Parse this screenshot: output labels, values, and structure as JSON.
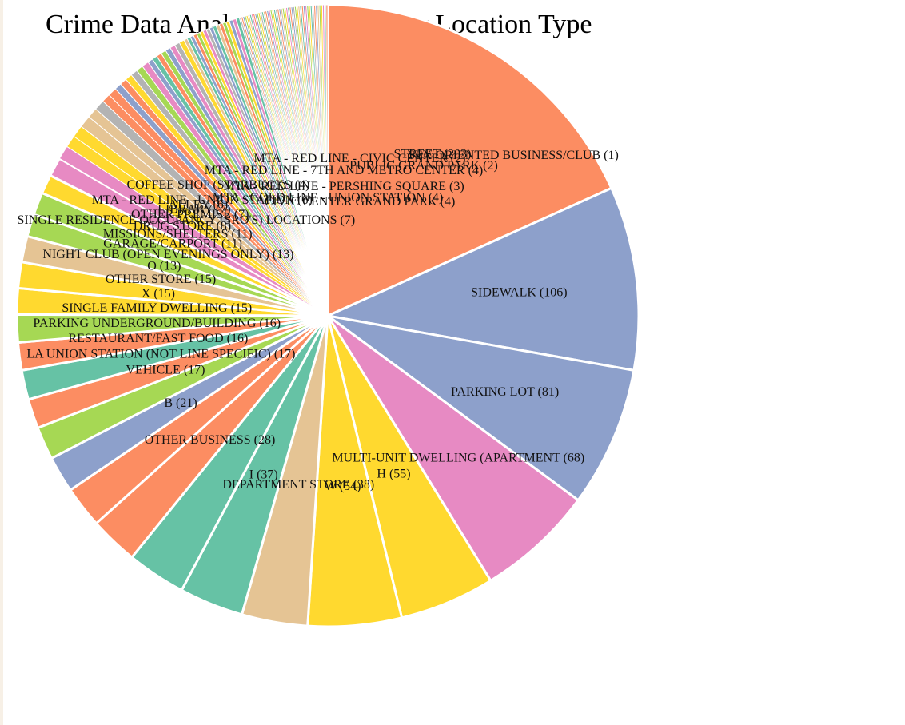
{
  "chart_data": {
    "type": "pie",
    "title": "Crime Data Analysis - Incidents by Location Type",
    "slices": [
      {
        "label": "STREET",
        "value": 203,
        "color": "#fc8d62"
      },
      {
        "label": "SIDEWALK",
        "value": 106,
        "color": "#8da0cb"
      },
      {
        "label": "PARKING LOT",
        "value": 81,
        "color": "#8da0cb"
      },
      {
        "label": "MULTI-UNIT DWELLING (APARTMENT",
        "value": 68,
        "color": "#e78ac3"
      },
      {
        "label": "H",
        "value": 55,
        "color": "#ffd92f"
      },
      {
        "label": "W",
        "value": 54,
        "color": "#ffd92f"
      },
      {
        "label": "DEPARTMENT STORE",
        "value": 38,
        "color": "#e5c494"
      },
      {
        "label": "I",
        "value": 37,
        "color": "#66c2a5"
      },
      {
        "label": "",
        "value": 34,
        "color": "#66c2a5"
      },
      {
        "label": "OTHER BUSINESS",
        "value": 28,
        "color": "#fc8d62"
      },
      {
        "label": "",
        "value": 24,
        "color": "#fc8d62"
      },
      {
        "label": "B",
        "value": 21,
        "color": "#8da0cb"
      },
      {
        "label": "",
        "value": 19,
        "color": "#a6d854"
      },
      {
        "label": "VEHICLE",
        "value": 17,
        "color": "#fc8d62"
      },
      {
        "label": "LA UNION STATION (NOT LINE SPECIFIC)",
        "value": 17,
        "color": "#66c2a5"
      },
      {
        "label": "RESTAURANT/FAST FOOD",
        "value": 16,
        "color": "#fc8d62"
      },
      {
        "label": "PARKING UNDERGROUND/BUILDING",
        "value": 16,
        "color": "#a6d854"
      },
      {
        "label": "SINGLE FAMILY DWELLING",
        "value": 15,
        "color": "#ffd92f"
      },
      {
        "label": "X",
        "value": 15,
        "color": "#ffd92f"
      },
      {
        "label": "OTHER STORE",
        "value": 15,
        "color": "#e5c494"
      },
      {
        "label": "O",
        "value": 13,
        "color": "#a6d854"
      },
      {
        "label": "NIGHT CLUB (OPEN EVENINGS ONLY)",
        "value": 13,
        "color": "#a6d854"
      },
      {
        "label": "GARAGE/CARPORT",
        "value": 11,
        "color": "#ffd92f"
      },
      {
        "label": "MISSIONS/SHELTERS",
        "value": 11,
        "color": "#e78ac3"
      },
      {
        "label": "DRUG STORE",
        "value": 8,
        "color": "#e78ac3"
      },
      {
        "label": "SINGLE RESIDENCE OCCUPANCY (SRO'S) LOCATIONS",
        "value": 7,
        "color": "#ffd92f"
      },
      {
        "label": "OTHER PREMISE",
        "value": 7,
        "color": "#ffd92f"
      },
      {
        "label": "LIBRARY",
        "value": 7,
        "color": "#e5c494"
      },
      {
        "label": "ALLEY",
        "value": 6,
        "color": "#e5c494"
      },
      {
        "label": "MTA - RED LINE - UNION STATION",
        "value": 6,
        "color": "#b3b3b3"
      },
      {
        "label": "",
        "value": 5,
        "color": "#fc8d62"
      },
      {
        "label": "",
        "value": 5,
        "color": "#fc8d62"
      },
      {
        "label": "",
        "value": 4,
        "color": "#8da0cb"
      },
      {
        "label": "",
        "value": 4,
        "color": "#fc8d62"
      },
      {
        "label": "COFFEE SHOP (STARBUCKS",
        "value": 4,
        "color": "#ffd92f"
      },
      {
        "label": "",
        "value": 4,
        "color": "#b3b3b3"
      },
      {
        "label": "",
        "value": 4,
        "color": "#a6d854"
      },
      {
        "label": "",
        "value": 4,
        "color": "#e78ac3"
      },
      {
        "label": "",
        "value": 3,
        "color": "#8da0cb"
      },
      {
        "label": "",
        "value": 3,
        "color": "#66c2a5"
      },
      {
        "label": "",
        "value": 3,
        "color": "#fc8d62"
      },
      {
        "label": "",
        "value": 3,
        "color": "#a6d854"
      },
      {
        "label": "",
        "value": 3,
        "color": "#8da0cb"
      },
      {
        "label": "",
        "value": 3,
        "color": "#e78ac3"
      },
      {
        "label": "",
        "value": 3,
        "color": "#b3b3b3"
      },
      {
        "label": "",
        "value": 3,
        "color": "#ffd92f"
      },
      {
        "label": "",
        "value": 2,
        "color": "#e5c494"
      },
      {
        "label": "",
        "value": 2,
        "color": "#66c2a5"
      },
      {
        "label": "",
        "value": 2,
        "color": "#8da0cb"
      },
      {
        "label": "",
        "value": 2,
        "color": "#fc8d62"
      },
      {
        "label": "",
        "value": 2,
        "color": "#a6d854"
      },
      {
        "label": "",
        "value": 2,
        "color": "#ffd92f"
      },
      {
        "label": "",
        "value": 2,
        "color": "#e78ac3"
      },
      {
        "label": "",
        "value": 2,
        "color": "#b3b3b3"
      },
      {
        "label": "",
        "value": 2,
        "color": "#8da0cb"
      },
      {
        "label": "",
        "value": 2,
        "color": "#66c2a5"
      },
      {
        "label": "",
        "value": 2,
        "color": "#e5c494"
      },
      {
        "label": "",
        "value": 2,
        "color": "#fc8d62"
      },
      {
        "label": "",
        "value": 2,
        "color": "#a6d854"
      },
      {
        "label": "",
        "value": 2,
        "color": "#ffd92f"
      },
      {
        "label": "",
        "value": 2,
        "color": "#8da0cb"
      },
      {
        "label": "",
        "value": 2,
        "color": "#e78ac3"
      },
      {
        "label": "",
        "value": 2,
        "color": "#66c2a5"
      },
      {
        "label": "",
        "value": 1,
        "color": "#b3b3b3"
      },
      {
        "label": "",
        "value": 1,
        "color": "#fc8d62"
      },
      {
        "label": "",
        "value": 1,
        "color": "#8da0cb"
      },
      {
        "label": "",
        "value": 1,
        "color": "#a6d854"
      },
      {
        "label": "",
        "value": 1,
        "color": "#ffd92f"
      },
      {
        "label": "",
        "value": 1,
        "color": "#e5c494"
      },
      {
        "label": "",
        "value": 1,
        "color": "#66c2a5"
      },
      {
        "label": "",
        "value": 1,
        "color": "#e78ac3"
      },
      {
        "label": "",
        "value": 1,
        "color": "#fc8d62"
      },
      {
        "label": "",
        "value": 1,
        "color": "#8da0cb"
      },
      {
        "label": "",
        "value": 1,
        "color": "#a6d854"
      },
      {
        "label": "",
        "value": 1,
        "color": "#ffd92f"
      },
      {
        "label": "",
        "value": 1,
        "color": "#b3b3b3"
      },
      {
        "label": "",
        "value": 1,
        "color": "#66c2a5"
      },
      {
        "label": "",
        "value": 1,
        "color": "#e5c494"
      },
      {
        "label": "",
        "value": 1,
        "color": "#fc8d62"
      },
      {
        "label": "",
        "value": 1,
        "color": "#8da0cb"
      },
      {
        "label": "",
        "value": 1,
        "color": "#e78ac3"
      },
      {
        "label": "",
        "value": 1,
        "color": "#a6d854"
      },
      {
        "label": "",
        "value": 1,
        "color": "#ffd92f"
      },
      {
        "label": "",
        "value": 1,
        "color": "#66c2a5"
      },
      {
        "label": "",
        "value": 1,
        "color": "#b3b3b3"
      },
      {
        "label": "",
        "value": 1,
        "color": "#fc8d62"
      },
      {
        "label": "",
        "value": 1,
        "color": "#8da0cb"
      },
      {
        "label": "",
        "value": 1,
        "color": "#e5c494"
      },
      {
        "label": "",
        "value": 1,
        "color": "#a6d854"
      },
      {
        "label": "",
        "value": 1,
        "color": "#ffd92f"
      },
      {
        "label": "",
        "value": 1,
        "color": "#e78ac3"
      },
      {
        "label": "",
        "value": 1,
        "color": "#66c2a5"
      },
      {
        "label": "",
        "value": 1,
        "color": "#fc8d62"
      },
      {
        "label": "",
        "value": 1,
        "color": "#8da0cb"
      },
      {
        "label": "",
        "value": 1,
        "color": "#b3b3b3"
      },
      {
        "label": "",
        "value": 1,
        "color": "#a6d854"
      },
      {
        "label": "",
        "value": 1,
        "color": "#ffd92f"
      },
      {
        "label": "",
        "value": 1,
        "color": "#e5c494"
      },
      {
        "label": "",
        "value": 1,
        "color": "#66c2a5"
      },
      {
        "label": "",
        "value": 1,
        "color": "#fc8d62"
      },
      {
        "label": "",
        "value": 1,
        "color": "#8da0cb"
      },
      {
        "label": "",
        "value": 1,
        "color": "#e78ac3"
      },
      {
        "label": "",
        "value": 1,
        "color": "#a6d854"
      },
      {
        "label": "",
        "value": 1,
        "color": "#ffd92f"
      },
      {
        "label": "",
        "value": 1,
        "color": "#66c2a5"
      },
      {
        "label": "",
        "value": 1,
        "color": "#b3b3b3"
      },
      {
        "label": "",
        "value": 1,
        "color": "#fc8d62"
      },
      {
        "label": "",
        "value": 1,
        "color": "#8da0cb"
      },
      {
        "label": "",
        "value": 1,
        "color": "#e5c494"
      },
      {
        "label": "",
        "value": 1,
        "color": "#a6d854"
      },
      {
        "label": "",
        "value": 1,
        "color": "#ffd92f"
      },
      {
        "label": "",
        "value": 1,
        "color": "#e78ac3"
      },
      {
        "label": "",
        "value": 1,
        "color": "#66c2a5"
      },
      {
        "label": "",
        "value": 1,
        "color": "#fc8d62"
      }
    ],
    "extra_labels": [
      {
        "text": "SEX ORIENTED BUSINESS/CLUB (1)",
        "near": "center-top-right"
      },
      {
        "text": "PUBLIC GRAND PARK (2)",
        "near": "center-top-right"
      },
      {
        "text": "MTA - RED LINE - CIVIC CENTER (2)",
        "near": "center-top"
      },
      {
        "text": "MTA - RED LINE - PERSHING SQUARE (3)",
        "near": "center-top"
      },
      {
        "text": "MTA - RED LINE - 7TH AND METRO CENTER (4)",
        "near": "center-top"
      },
      {
        "text": "MTA - GOLD LINE - UNION STATION (4)",
        "near": "center-top"
      },
      {
        "text": "CIVIC CENTER GRAND PARK (4)",
        "near": "center-top"
      }
    ]
  }
}
